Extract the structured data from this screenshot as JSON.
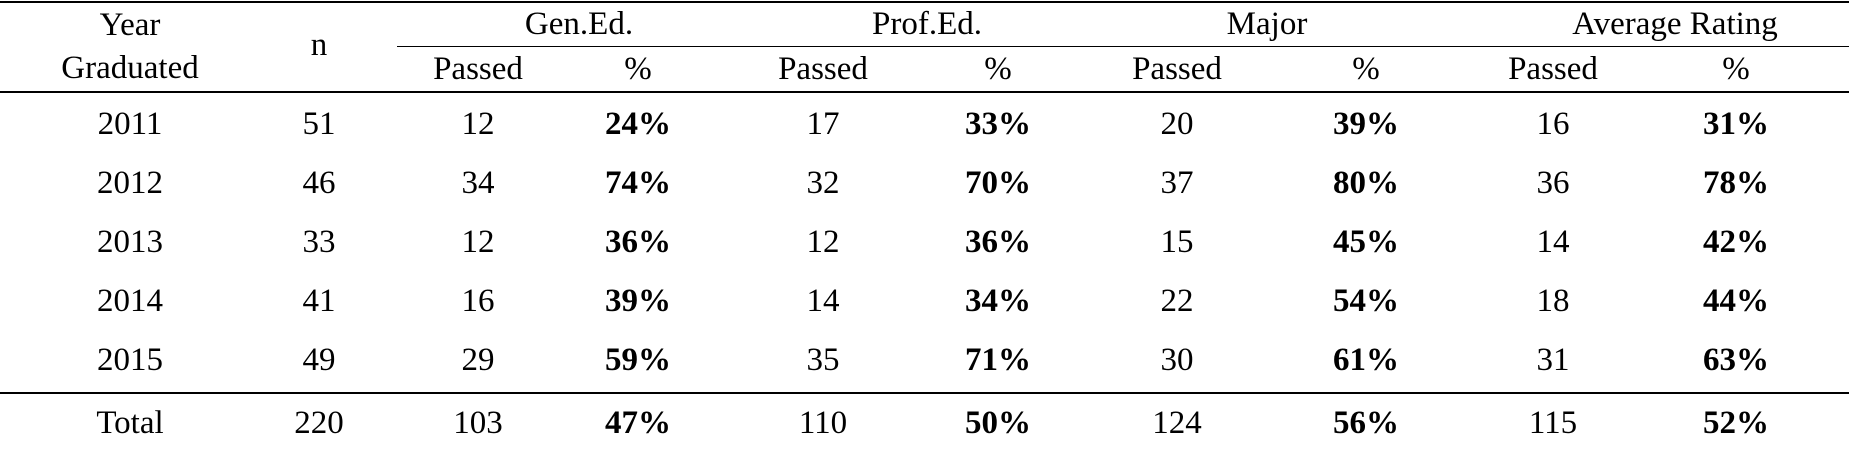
{
  "header": {
    "year": "Year Graduated",
    "n": "n",
    "groups": [
      "Gen.Ed.",
      "Prof.Ed.",
      "Major",
      "Average Rating"
    ],
    "subheaders": [
      "Passed",
      "%",
      "Passed",
      "%",
      "Passed",
      "%",
      "Passed",
      "%"
    ]
  },
  "rows": [
    [
      "2011",
      "51",
      "12",
      "24%",
      "17",
      "33%",
      "20",
      "39%",
      "16",
      "31%"
    ],
    [
      "2012",
      "46",
      "34",
      "74%",
      "32",
      "70%",
      "37",
      "80%",
      "36",
      "78%"
    ],
    [
      "2013",
      "33",
      "12",
      "36%",
      "12",
      "36%",
      "15",
      "45%",
      "14",
      "42%"
    ],
    [
      "2014",
      "41",
      "16",
      "39%",
      "14",
      "34%",
      "22",
      "54%",
      "18",
      "44%"
    ],
    [
      "2015",
      "49",
      "29",
      "59%",
      "35",
      "71%",
      "30",
      "61%",
      "31",
      "63%"
    ]
  ],
  "total": [
    "Total",
    "220",
    "103",
    "47%",
    "110",
    "50%",
    "124",
    "56%",
    "115",
    "52%"
  ]
}
